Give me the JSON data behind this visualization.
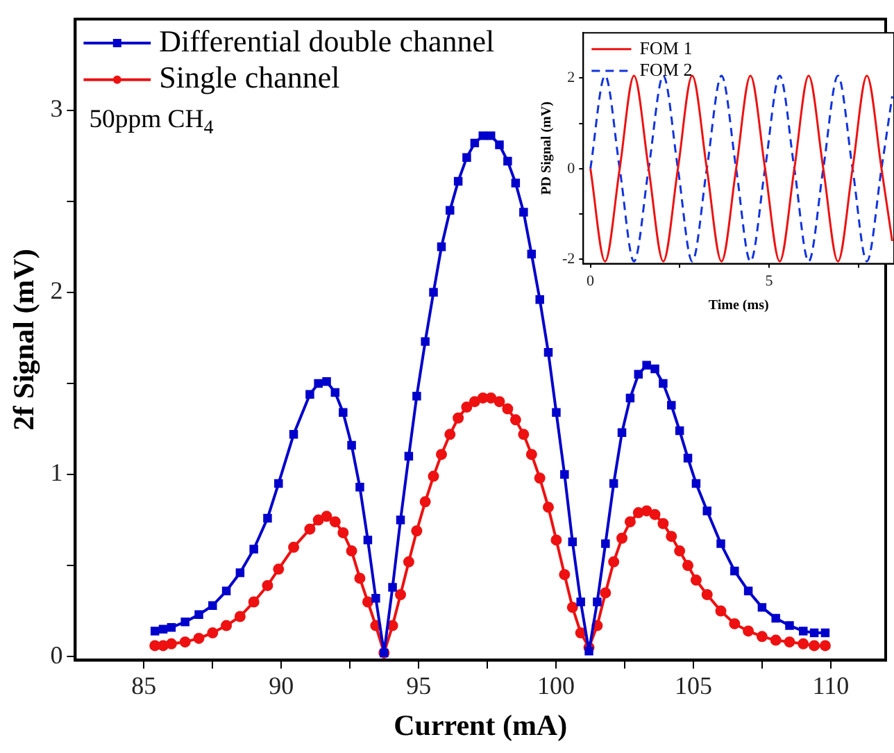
{
  "chart_data": [
    {
      "type": "line",
      "xlabel": "Current (mA)",
      "ylabel": "2f Signal (mV)",
      "legend": "top left",
      "grid": false,
      "annotations": [
        "50ppm CH$_{4}$"
      ],
      "xlim": [
        82.5,
        112
      ],
      "ylim": [
        -0.02,
        3.5
      ],
      "xticks": [
        85,
        {
          "value": 87.5,
          "label": null
        },
        90,
        {
          "value": 92.5,
          "label": null
        },
        95,
        {
          "value": 97.5,
          "label": null
        },
        100,
        {
          "value": 102.5,
          "label": null
        },
        105,
        {
          "value": 107.5,
          "label": null
        },
        110
      ],
      "yticks": [
        0,
        {
          "value": 0.5,
          "label": null
        },
        1,
        {
          "value": 1.5,
          "label": null
        },
        2,
        {
          "value": 2.5,
          "label": null
        },
        3
      ],
      "x": [
        85.4,
        85.7,
        86.0,
        86.5,
        87.0,
        87.5,
        88.0,
        88.5,
        89.0,
        89.5,
        89.9,
        90.45,
        91.04,
        91.35,
        91.65,
        91.96,
        92.25,
        92.56,
        92.86,
        93.15,
        93.44,
        93.74,
        94.05,
        94.34,
        94.64,
        94.93,
        95.24,
        95.54,
        95.83,
        96.14,
        96.44,
        96.75,
        97.04,
        97.34,
        97.63,
        97.94,
        98.24,
        98.53,
        98.82,
        99.11,
        99.41,
        99.72,
        100.01,
        100.31,
        100.6,
        100.9,
        101.2,
        101.5,
        101.8,
        102.1,
        102.4,
        102.7,
        103.0,
        103.3,
        103.6,
        103.9,
        104.2,
        104.5,
        104.8,
        105.1,
        105.5,
        106.0,
        106.5,
        107.0,
        107.5,
        108.0,
        108.5,
        109.0,
        109.4,
        109.8
      ],
      "series": [
        {
          "name": "Differential double channel",
          "color": "#0000cc",
          "marker": "square",
          "values": [
            0.14,
            0.15,
            0.16,
            0.19,
            0.23,
            0.28,
            0.36,
            0.46,
            0.59,
            0.76,
            0.95,
            1.22,
            1.44,
            1.5,
            1.51,
            1.45,
            1.34,
            1.16,
            0.93,
            0.64,
            0.32,
            0.02,
            0.38,
            0.75,
            1.1,
            1.43,
            1.73,
            2.0,
            2.25,
            2.45,
            2.61,
            2.74,
            2.82,
            2.86,
            2.86,
            2.81,
            2.72,
            2.6,
            2.44,
            2.21,
            1.96,
            1.67,
            1.34,
            1.0,
            0.63,
            0.3,
            0.03,
            0.3,
            0.62,
            0.95,
            1.23,
            1.42,
            1.55,
            1.6,
            1.58,
            1.5,
            1.38,
            1.24,
            1.09,
            0.95,
            0.8,
            0.62,
            0.47,
            0.36,
            0.27,
            0.21,
            0.17,
            0.14,
            0.13,
            0.13
          ]
        },
        {
          "name": "Single channel",
          "color": "#ee1111",
          "marker": "circle",
          "values": [
            0.06,
            0.06,
            0.07,
            0.08,
            0.1,
            0.13,
            0.17,
            0.22,
            0.3,
            0.39,
            0.48,
            0.6,
            0.7,
            0.75,
            0.77,
            0.74,
            0.68,
            0.58,
            0.43,
            0.3,
            0.17,
            0.02,
            0.17,
            0.34,
            0.52,
            0.69,
            0.85,
            0.99,
            1.11,
            1.22,
            1.31,
            1.37,
            1.4,
            1.42,
            1.42,
            1.4,
            1.36,
            1.3,
            1.22,
            1.11,
            0.98,
            0.82,
            0.64,
            0.45,
            0.27,
            0.13,
            0.05,
            0.17,
            0.35,
            0.52,
            0.65,
            0.74,
            0.79,
            0.8,
            0.78,
            0.73,
            0.66,
            0.58,
            0.5,
            0.42,
            0.34,
            0.25,
            0.18,
            0.14,
            0.11,
            0.09,
            0.08,
            0.07,
            0.06,
            0.06
          ]
        }
      ]
    },
    {
      "type": "line",
      "xlabel": "Time (ms)",
      "ylabel": "PD Signal (mV)",
      "legend": "top left",
      "grid": false,
      "marker": "none",
      "xlim": [
        -0.2,
        8.5
      ],
      "ylim": [
        -2.1,
        3
      ],
      "xticks": [
        0,
        {
          "value": 2.5,
          "label": null
        },
        5,
        {
          "value": 7.5,
          "label": null
        }
      ],
      "yticks": [
        -2,
        {
          "value": -1,
          "label": null
        },
        0,
        {
          "value": 1,
          "label": null
        },
        2
      ],
      "x": [
        0,
        0.41,
        0.82,
        1.22,
        1.63,
        2.04,
        2.45,
        2.85,
        3.26,
        3.67,
        4.08,
        4.48,
        4.89,
        5.3,
        5.71,
        6.11,
        6.52,
        6.93,
        7.34,
        7.74,
        8.15,
        8.45
      ],
      "series": [
        {
          "name": "FOM 1",
          "color": "#ee1111",
          "line_style": "solid",
          "values": [
            0,
            -2.05,
            0,
            2.05,
            0,
            -2.05,
            0,
            2.05,
            0,
            -2.05,
            0,
            2.05,
            0,
            -2.05,
            0,
            2.05,
            0,
            -2.05,
            0,
            2.05,
            0,
            -1.6
          ]
        },
        {
          "name": "FOM 2",
          "color": "#1133dd",
          "line_style": "dashed",
          "values": [
            0,
            2.05,
            0,
            -2.05,
            0,
            2.05,
            0,
            -2.05,
            0,
            2.05,
            0,
            -2.05,
            0,
            2.05,
            0,
            -2.05,
            0,
            2.05,
            0,
            -2.05,
            0,
            1.6
          ]
        }
      ]
    }
  ]
}
